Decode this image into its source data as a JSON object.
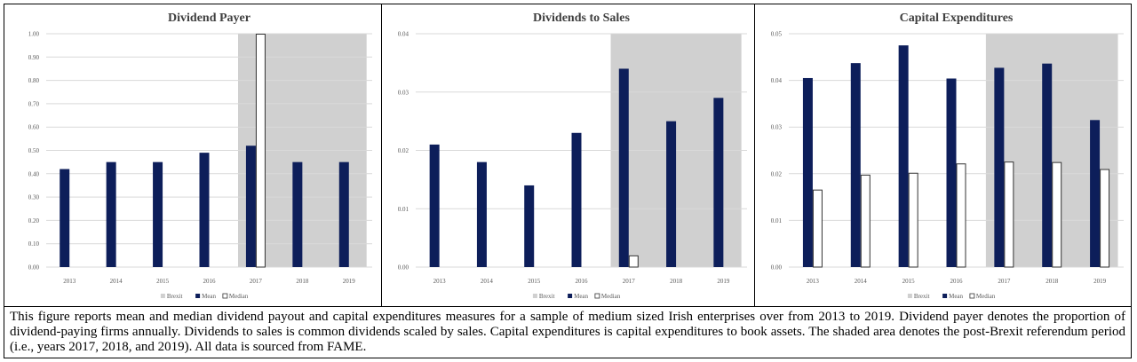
{
  "chart_data": [
    {
      "type": "bar",
      "title": "Dividend Payer",
      "categories": [
        "2013",
        "2014",
        "2015",
        "2016",
        "2017",
        "2018",
        "2019"
      ],
      "ylim": [
        0,
        1.0
      ],
      "yticks": [
        "0.00",
        "0.10",
        "0.20",
        "0.30",
        "0.40",
        "0.50",
        "0.60",
        "0.70",
        "0.80",
        "0.90",
        "1.00"
      ],
      "shaded_categories": [
        "2017",
        "2018",
        "2019"
      ],
      "series": [
        {
          "name": "Mean",
          "values": [
            0.42,
            0.45,
            0.45,
            0.49,
            0.52,
            0.45,
            0.45
          ]
        },
        {
          "name": "Median",
          "values": [
            0,
            0,
            0,
            0,
            1.0,
            0,
            0
          ]
        }
      ],
      "legend": [
        "Brexit",
        "Mean",
        "Median"
      ],
      "legend_position": "bottom"
    },
    {
      "type": "bar",
      "title": "Dividends to Sales",
      "categories": [
        "2013",
        "2014",
        "2015",
        "2016",
        "2017",
        "2018",
        "2019"
      ],
      "ylim": [
        0,
        0.04
      ],
      "yticks": [
        "0.00",
        "0.01",
        "0.02",
        "0.03",
        "0.04"
      ],
      "shaded_categories": [
        "2017",
        "2018",
        "2019"
      ],
      "series": [
        {
          "name": "Mean",
          "values": [
            0.021,
            0.018,
            0.014,
            0.023,
            0.034,
            0.025,
            0.029
          ]
        },
        {
          "name": "Median",
          "values": [
            0,
            0,
            0,
            0,
            0.002,
            0,
            0
          ]
        }
      ],
      "legend": [
        "Brexit",
        "Mean",
        "Median"
      ],
      "legend_position": "bottom"
    },
    {
      "type": "bar",
      "title": "Capital Expenditures",
      "categories": [
        "2013",
        "2014",
        "2015",
        "2016",
        "2017",
        "2018",
        "2019"
      ],
      "ylim": [
        0,
        0.05
      ],
      "yticks": [
        "0.00",
        "0.01",
        "0.02",
        "0.03",
        "0.04",
        "0.05"
      ],
      "shaded_categories": [
        "2017",
        "2018",
        "2019"
      ],
      "series": [
        {
          "name": "Mean",
          "values": [
            0.0405,
            0.0437,
            0.0475,
            0.0404,
            0.0427,
            0.0436,
            0.0315
          ]
        },
        {
          "name": "Median",
          "values": [
            0.0166,
            0.0198,
            0.0202,
            0.0222,
            0.0226,
            0.0225,
            0.021
          ]
        }
      ],
      "legend": [
        "Brexit",
        "Mean",
        "Median"
      ],
      "legend_position": "bottom"
    }
  ],
  "colors": {
    "mean": "#0d1e5a",
    "median": "#ffffff",
    "brexit": "#d0d0d0",
    "grid": "#d9d9d9"
  },
  "caption": "This figure reports mean and median dividend payout and capital expenditures measures for a sample of medium sized Irish enterprises over from 2013 to 2019. Dividend payer denotes the proportion of dividend-paying firms annually. Dividends to sales is common dividends scaled by sales. Capital expenditures is capital expenditures to book assets. The shaded area denotes the post-Brexit referendum period (i.e., years 2017, 2018, and 2019). All data is sourced from FAME."
}
